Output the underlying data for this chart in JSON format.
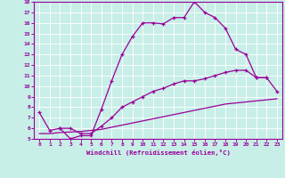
{
  "xlabel": "Windchill (Refroidissement éolien,°C)",
  "bg_color": "#c8eee8",
  "line_color": "#990099",
  "xlim": [
    -0.5,
    23.5
  ],
  "ylim": [
    5,
    18
  ],
  "yticks": [
    5,
    6,
    7,
    8,
    9,
    10,
    11,
    12,
    13,
    14,
    15,
    16,
    17,
    18
  ],
  "xticks": [
    0,
    1,
    2,
    3,
    4,
    5,
    6,
    7,
    8,
    9,
    10,
    11,
    12,
    13,
    14,
    15,
    16,
    17,
    18,
    19,
    20,
    21,
    22,
    23
  ],
  "line1_x": [
    0,
    1,
    2,
    3,
    4,
    5,
    6,
    7,
    8,
    9,
    10,
    11,
    12,
    13,
    14,
    15,
    16,
    17,
    18,
    19,
    20,
    21,
    22
  ],
  "line1_y": [
    7.5,
    5.8,
    6.0,
    5.0,
    5.3,
    5.3,
    7.8,
    10.5,
    13.0,
    14.7,
    16.0,
    16.0,
    15.9,
    16.5,
    16.5,
    18.0,
    17.0,
    16.5,
    15.5,
    13.5,
    13.0,
    10.8,
    10.8
  ],
  "line2_x": [
    2,
    3,
    4,
    5,
    6,
    7,
    8,
    9,
    10,
    11,
    12,
    13,
    14,
    15,
    16,
    17,
    18,
    19,
    20,
    21,
    22,
    23
  ],
  "line2_y": [
    6.0,
    6.0,
    5.5,
    5.5,
    6.2,
    7.0,
    8.0,
    8.5,
    9.0,
    9.5,
    9.8,
    10.2,
    10.5,
    10.5,
    10.7,
    11.0,
    11.3,
    11.5,
    11.5,
    10.8,
    10.8,
    9.5
  ],
  "line3_x": [
    0,
    1,
    2,
    3,
    4,
    5,
    6,
    7,
    8,
    9,
    10,
    11,
    12,
    13,
    14,
    15,
    16,
    17,
    18,
    19,
    20,
    21,
    22,
    23
  ],
  "line3_y": [
    5.5,
    5.5,
    5.6,
    5.65,
    5.7,
    5.8,
    5.9,
    6.1,
    6.3,
    6.5,
    6.7,
    6.9,
    7.1,
    7.3,
    7.5,
    7.7,
    7.9,
    8.1,
    8.3,
    8.4,
    8.5,
    8.6,
    8.7,
    8.8
  ]
}
